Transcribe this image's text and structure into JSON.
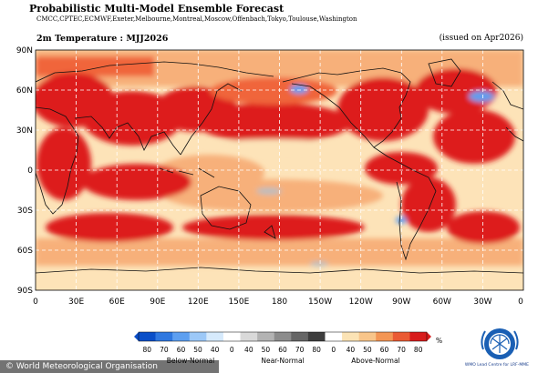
{
  "header": {
    "title": "Probabilistic Multi-Model Ensemble Forecast",
    "centers": "CMCC,CPTEC,ECMWF,Exeter,Melbourne,Montreal,Moscow,Offenbach,Tokyo,Toulouse,Washington",
    "subtitle": "2m Temperature : MJJ2026",
    "issued": "(issued on Apr2026)"
  },
  "axes": {
    "lat_labels": [
      "90N",
      "60N",
      "30N",
      "0",
      "30S",
      "60S",
      "90S"
    ],
    "lon_labels": [
      "0",
      "30E",
      "60E",
      "90E",
      "120E",
      "150E",
      "180",
      "150W",
      "120W",
      "90W",
      "60W",
      "30W",
      "0"
    ]
  },
  "colorbar": {
    "numbers": [
      "80",
      "70",
      "60",
      "50",
      "40",
      "0",
      "40",
      "50",
      "60",
      "70",
      "80",
      "0",
      "40",
      "50",
      "60",
      "70",
      "80"
    ],
    "unit": "%",
    "categories": [
      "Below-Normal",
      "Near-Normal",
      "Above-Normal"
    ],
    "colors": [
      "#0a4fc8",
      "#2f78e0",
      "#5d9ff0",
      "#9cc8f7",
      "#d6eafc",
      "#ffffff",
      "#d9d9d9",
      "#b3b3b3",
      "#8c8c8c",
      "#666666",
      "#3d3d3d",
      "#ffffff",
      "#fbe3b5",
      "#f8c58a",
      "#f39655",
      "#ea5a34",
      "#d81c1c"
    ]
  },
  "colors": {
    "above_strong": "#dd1f1f",
    "above_mid": "#f0653a",
    "above_light": "#f7b07a",
    "above_weak": "#fde3b8",
    "below": "#5d9ff0",
    "near": "#bdbdbd"
  },
  "credit": "© World Meteorological Organisation",
  "logo_text": "WMO Lead Centre for LRF-MME",
  "icons": {
    "logo": "wmo-emblem-icon"
  }
}
